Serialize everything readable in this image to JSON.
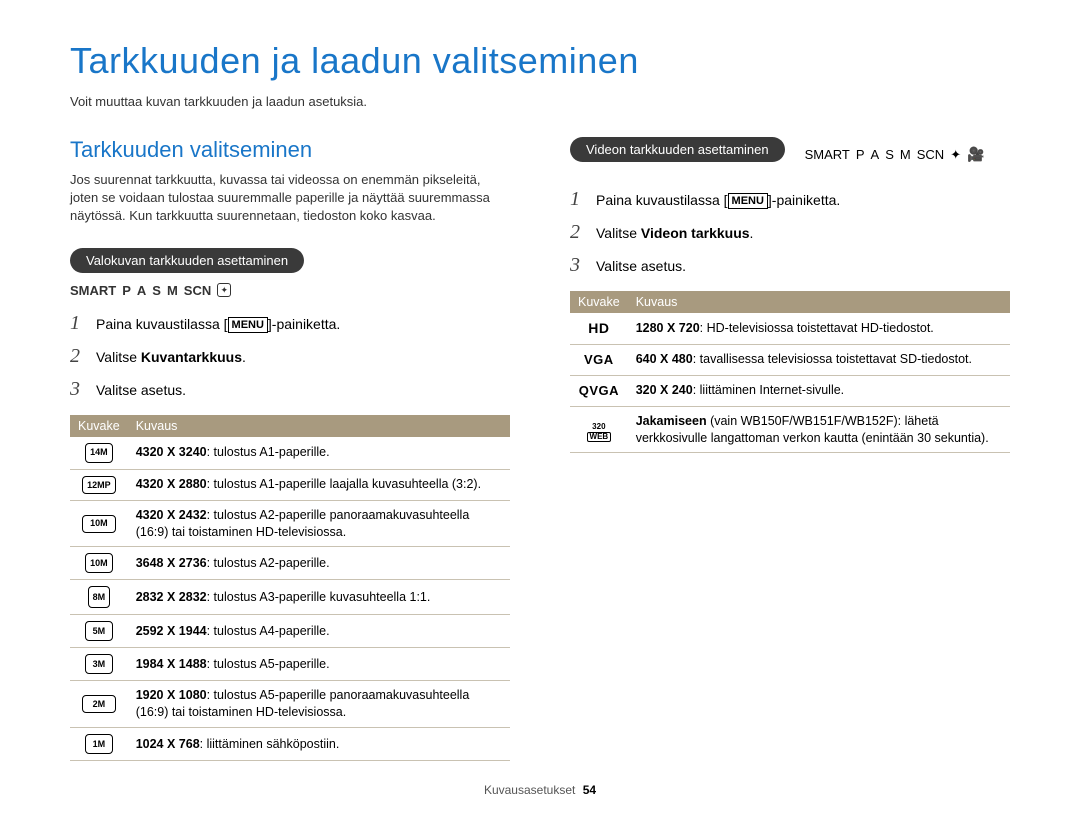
{
  "page": {
    "title": "Tarkkuuden ja laadun valitseminen",
    "intro": "Voit muuttaa kuvan tarkkuuden ja laadun asetuksia."
  },
  "left": {
    "heading": "Tarkkuuden valitseminen",
    "body": "Jos suurennat tarkkuutta, kuvassa tai videossa on enemmän pikseleitä, joten se voidaan tulostaa suuremmalle paperille ja näyttää suuremmassa näytössä. Kun tarkkuutta suurennetaan, tiedoston koko kasvaa.",
    "pill": "Valokuvan tarkkuuden asettaminen",
    "modes": [
      "SMART",
      "P",
      "A",
      "S",
      "M",
      "SCN"
    ],
    "steps": [
      {
        "num": "1",
        "pre": "Paina kuvaustilassa [",
        "btn": "MENU",
        "post": "]-painiketta."
      },
      {
        "num": "2",
        "pre": "Valitse ",
        "bold": "Kuvantarkkuus",
        "post": "."
      },
      {
        "num": "3",
        "pre": "Valitse asetus."
      }
    ],
    "table": {
      "headers": [
        "Kuvake",
        "Kuvaus"
      ],
      "rows": [
        {
          "icon": "14M",
          "shape": "normal",
          "bold": "4320 X 3240",
          "text": ": tulostus A1-paperille."
        },
        {
          "icon": "12MP",
          "shape": "wide",
          "bold": "4320 X 2880",
          "text": ": tulostus A1-paperille laajalla kuvasuhteella (3:2)."
        },
        {
          "icon": "10M",
          "shape": "wide",
          "bold": "4320 X 2432",
          "text": ": tulostus A2-paperille panoraamakuvasuhteella (16:9) tai toistaminen HD-televisiossa."
        },
        {
          "icon": "10M",
          "shape": "normal",
          "bold": "3648 X 2736",
          "text": ": tulostus A2-paperille."
        },
        {
          "icon": "8M",
          "shape": "square",
          "bold": "2832 X 2832",
          "text": ": tulostus A3-paperille kuvasuhteella 1:1."
        },
        {
          "icon": "5M",
          "shape": "normal",
          "bold": "2592 X 1944",
          "text": ": tulostus A4-paperille."
        },
        {
          "icon": "3M",
          "shape": "normal",
          "bold": "1984 X 1488",
          "text": ": tulostus A5-paperille."
        },
        {
          "icon": "2M",
          "shape": "wide",
          "bold": "1920 X 1080",
          "text": ": tulostus A5-paperille panoraamakuvasuhteella (16:9) tai toistaminen HD-televisiossa."
        },
        {
          "icon": "1M",
          "shape": "normal",
          "bold": "1024 X 768",
          "text": ": liittäminen sähköpostiin."
        }
      ]
    }
  },
  "right": {
    "pill": "Videon tarkkuuden asettaminen",
    "modes": [
      "SMART",
      "P",
      "A",
      "S",
      "M",
      "SCN"
    ],
    "steps": [
      {
        "num": "1",
        "pre": "Paina kuvaustilassa [",
        "btn": "MENU",
        "post": "]-painiketta."
      },
      {
        "num": "2",
        "pre": "Valitse ",
        "bold": "Videon tarkkuus",
        "post": "."
      },
      {
        "num": "3",
        "pre": "Valitse asetus."
      }
    ],
    "table": {
      "headers": [
        "Kuvake",
        "Kuvaus"
      ],
      "rows": [
        {
          "icon_type": "hd",
          "label": "HD",
          "bold": "1280 X 720",
          "text": ": HD-televisiossa toistettavat HD-tiedostot."
        },
        {
          "icon_type": "text",
          "label": "VGA",
          "bold": "640 X 480",
          "text": ": tavallisessa televisiossa toistettavat SD-tiedostot."
        },
        {
          "icon_type": "text",
          "label": "QVGA",
          "bold": "320 X 240",
          "text": ": liittäminen Internet-sivulle."
        },
        {
          "icon_type": "web",
          "top": "320",
          "bottom": "WEB",
          "bold": "Jakamiseen",
          "textpre": " (vain WB150F/WB151F/WB152F): ",
          "text": "lähetä verkkosivulle langattoman verkon kautta (enintään 30 sekuntia)."
        }
      ]
    }
  },
  "footer": {
    "section": "Kuvausasetukset",
    "page": "54"
  },
  "colors": {
    "heading_blue": "#1976c8",
    "pill_bg": "#3a3a3a",
    "table_header_bg": "#a89a7f",
    "table_border": "#c9c2b2"
  }
}
